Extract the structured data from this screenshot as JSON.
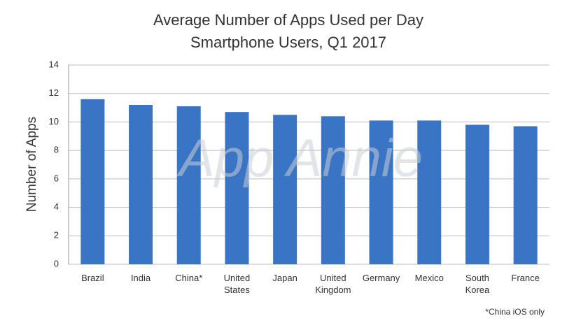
{
  "chart_data": {
    "type": "bar",
    "title": "Average Number of Apps Used per Day",
    "subtitle": "Smartphone Users, Q1 2017",
    "y_label": "Number of Apps",
    "watermark": "App Annie",
    "footnote": "*China iOS only",
    "categories": [
      "Brazil",
      "India",
      "China*",
      "United States",
      "Japan",
      "United Kingdom",
      "Germany",
      "Mexico",
      "South Korea",
      "France"
    ],
    "values": [
      11.6,
      11.2,
      11.1,
      10.7,
      10.5,
      10.4,
      10.1,
      10.1,
      9.8,
      9.7
    ],
    "color": "#3a74c4",
    "ylim": [
      0,
      14
    ],
    "yticks": [
      0,
      2,
      4,
      6,
      8,
      10,
      12,
      14
    ],
    "grid": true
  }
}
